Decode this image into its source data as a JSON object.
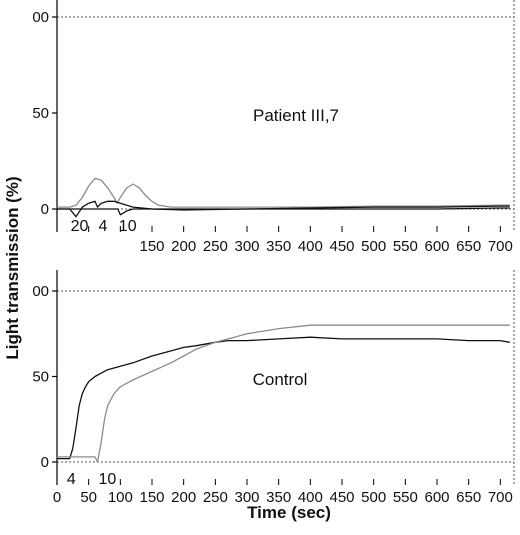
{
  "chart_data": {
    "type": "line",
    "xlabel": "Time (sec)",
    "ylabel": "Light transmission (%)",
    "x_ticks": [
      "0",
      "50",
      "100",
      "150",
      "200",
      "250",
      "300",
      "350",
      "400",
      "450",
      "500",
      "550",
      "600",
      "650",
      "700"
    ],
    "xlim": [
      0,
      720
    ],
    "grid": false,
    "colors": {
      "dark": "#111111",
      "light": "#8c8c8c",
      "dotted": "#555555"
    },
    "panels": [
      {
        "label": "Patient III,7",
        "y_ticks": [
          "0",
          "50",
          "00"
        ],
        "ylim": [
          -12,
          100
        ],
        "annotations": [
          {
            "text": "20",
            "x": 20
          },
          {
            "text": "4",
            "x": 64
          },
          {
            "text": "10",
            "x": 96
          }
        ],
        "series": [
          {
            "color": "light",
            "x": [
              0,
              20,
              30,
              40,
              50,
              60,
              70,
              80,
              90,
              95,
              100,
              110,
              120,
              130,
              140,
              150,
              160,
              170,
              180,
              200,
              250,
              300,
              400,
              500,
              600,
              700,
              715
            ],
            "values": [
              1,
              1,
              2,
              6,
              12,
              16,
              15,
              11,
              6,
              3,
              6,
              11,
              13,
              11,
              7,
              4,
              2,
              1.5,
              1,
              1,
              1,
              1,
              1,
              1.5,
              1.5,
              2,
              2
            ]
          },
          {
            "color": "dark",
            "x": [
              0,
              20,
              30,
              40,
              50,
              60,
              64,
              70,
              80,
              90,
              100,
              120,
              150,
              200,
              300,
              400,
              500,
              600,
              700,
              715
            ],
            "values": [
              0,
              0,
              -4,
              1,
              3,
              4,
              1,
              3,
              4,
              4,
              3,
              1,
              0,
              -0.5,
              0,
              0.5,
              1,
              1,
              1.5,
              1.5
            ]
          },
          {
            "color": "dark",
            "x": [
              0,
              96,
              100,
              110,
              120,
              150,
              200,
              300,
              400,
              500,
              600,
              700,
              715
            ],
            "values": [
              0,
              0,
              -3,
              -1,
              0,
              0,
              0,
              0,
              0,
              0,
              0,
              0.5,
              0.5
            ]
          }
        ]
      },
      {
        "label": "Control",
        "y_ticks": [
          "0",
          "50",
          "00"
        ],
        "ylim": [
          -12,
          100
        ],
        "annotations": [
          {
            "text": "4",
            "x": 14
          },
          {
            "text": "10",
            "x": 64
          }
        ],
        "series": [
          {
            "color": "dark",
            "x": [
              0,
              20,
              25,
              30,
              35,
              40,
              45,
              50,
              60,
              70,
              80,
              100,
              120,
              150,
              180,
              200,
              220,
              250,
              270,
              300,
              350,
              400,
              450,
              500,
              550,
              600,
              650,
              700,
              715
            ],
            "values": [
              2,
              2,
              8,
              20,
              33,
              40,
              44,
              47,
              50,
              52,
              54,
              56,
              58,
              62,
              65,
              67,
              68,
              70,
              71,
              71,
              72,
              73,
              72,
              72,
              72,
              72,
              71,
              71,
              70
            ]
          },
          {
            "color": "light",
            "x": [
              0,
              60,
              64,
              70,
              75,
              80,
              90,
              100,
              120,
              150,
              180,
              200,
              220,
              250,
              280,
              300,
              350,
              400,
              450,
              500,
              550,
              600,
              650,
              700,
              715
            ],
            "values": [
              3,
              3,
              0,
              12,
              25,
              33,
              40,
              44,
              48,
              53,
              58,
              62,
              66,
              70,
              73,
              75,
              78,
              80,
              80,
              80,
              80,
              80,
              80,
              80,
              80
            ]
          }
        ]
      }
    ]
  }
}
